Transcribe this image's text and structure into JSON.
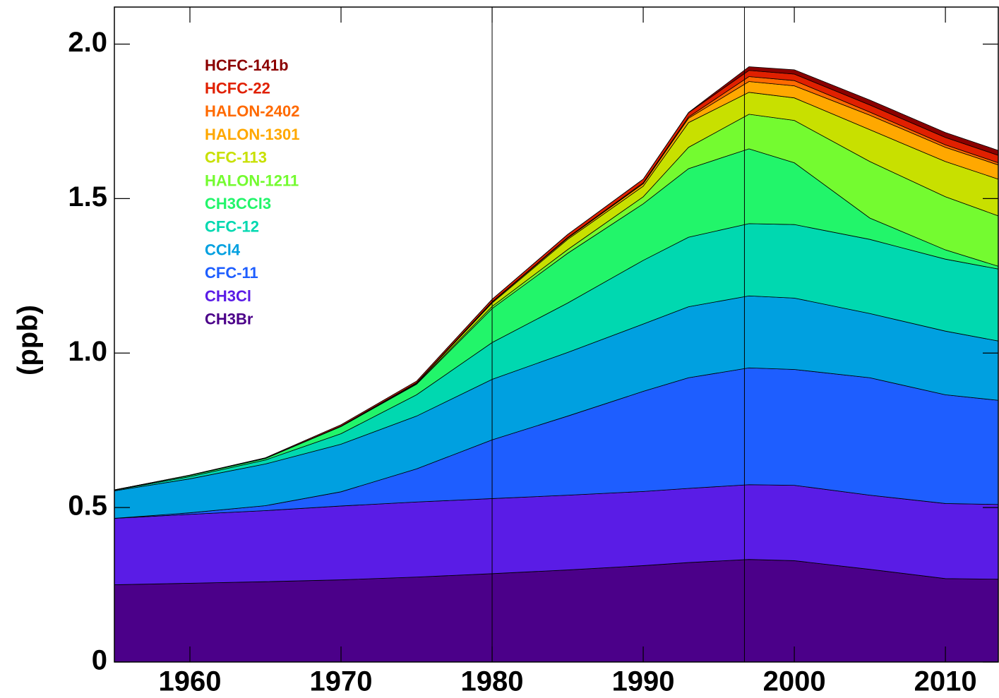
{
  "chart_data": {
    "type": "stacked_area",
    "y_label": "(ppb)",
    "x": [
      1955,
      1960,
      1965,
      1970,
      1975,
      1980,
      1985,
      1990,
      1993,
      1997,
      2000,
      2005,
      2010,
      2013.5
    ],
    "xlim": [
      1955,
      2013.5
    ],
    "xticks": [
      1960,
      1970,
      1980,
      1990,
      2000,
      2010
    ],
    "ylim": [
      0,
      2.12
    ],
    "yticks": [
      0,
      0.5,
      {
        "value": 1,
        "label": "1.0"
      },
      1.5,
      {
        "value": 2,
        "label": "2.0"
      }
    ],
    "vlines": [
      1980,
      1996.7
    ],
    "series": [
      {
        "name": "CH3Br",
        "color": "#4b0089",
        "values": [
          0.25,
          0.255,
          0.26,
          0.266,
          0.275,
          0.286,
          0.298,
          0.312,
          0.322,
          0.332,
          0.328,
          0.3,
          0.27,
          0.268
        ]
      },
      {
        "name": "CH3Cl",
        "color": "#5a1ce6",
        "values": [
          0.215,
          0.223,
          0.23,
          0.239,
          0.243,
          0.243,
          0.242,
          0.24,
          0.24,
          0.242,
          0.244,
          0.24,
          0.243,
          0.242
        ]
      },
      {
        "name": "CFC-11",
        "color": "#1e5eff",
        "values": [
          0,
          0.005,
          0.016,
          0.046,
          0.107,
          0.19,
          0.256,
          0.324,
          0.358,
          0.378,
          0.375,
          0.38,
          0.352,
          0.337
        ]
      },
      {
        "name": "CCl4",
        "color": "#00a0e0",
        "values": [
          0.089,
          0.11,
          0.135,
          0.154,
          0.171,
          0.196,
          0.206,
          0.218,
          0.23,
          0.233,
          0.231,
          0.208,
          0.206,
          0.192
        ]
      },
      {
        "name": "CFC-12",
        "color": "#00d8b0",
        "values": [
          0.002,
          0.007,
          0.013,
          0.034,
          0.069,
          0.119,
          0.16,
          0.206,
          0.225,
          0.234,
          0.238,
          0.24,
          0.233,
          0.233
        ]
      },
      {
        "name": "CH3CCl3",
        "color": "#22f56a",
        "values": [
          0.001,
          0.004,
          0.005,
          0.023,
          0.034,
          0.11,
          0.161,
          0.183,
          0.222,
          0.242,
          0.2,
          0.069,
          0.03,
          0.009
        ]
      },
      {
        "name": "HALON-1211",
        "color": "#74fb30",
        "values": [
          0,
          0,
          0,
          0.001,
          0.002,
          0.007,
          0.012,
          0.023,
          0.069,
          0.112,
          0.137,
          0.183,
          0.172,
          0.163
        ]
      },
      {
        "name": "CFC-113",
        "color": "#c8e000",
        "values": [
          0,
          0,
          0,
          0.001,
          0.002,
          0.011,
          0.033,
          0.034,
          0.08,
          0.071,
          0.073,
          0.103,
          0.114,
          0.119
        ]
      },
      {
        "name": "HALON-1301",
        "color": "#ffa800",
        "values": [
          0,
          0,
          0,
          0,
          0.001,
          0.003,
          0.004,
          0.008,
          0.014,
          0.035,
          0.039,
          0.047,
          0.046,
          0.046
        ]
      },
      {
        "name": "HALON-2402",
        "color": "#ff6a00",
        "values": [
          0,
          0,
          0,
          0,
          0,
          0.001,
          0.002,
          0.003,
          0.004,
          0.016,
          0.017,
          0.01,
          0.008,
          0.007
        ]
      },
      {
        "name": "HCFC-22",
        "color": "#e02000",
        "values": [
          0,
          0.001,
          0.002,
          0.004,
          0.005,
          0.008,
          0.01,
          0.012,
          0.014,
          0.02,
          0.021,
          0.023,
          0.024,
          0.024
        ]
      },
      {
        "name": "HCFC-141b",
        "color": "#8b0000",
        "values": [
          0,
          0,
          0,
          0,
          0,
          0,
          0,
          0,
          0.001,
          0.012,
          0.014,
          0.016,
          0.016,
          0.016
        ]
      }
    ]
  }
}
